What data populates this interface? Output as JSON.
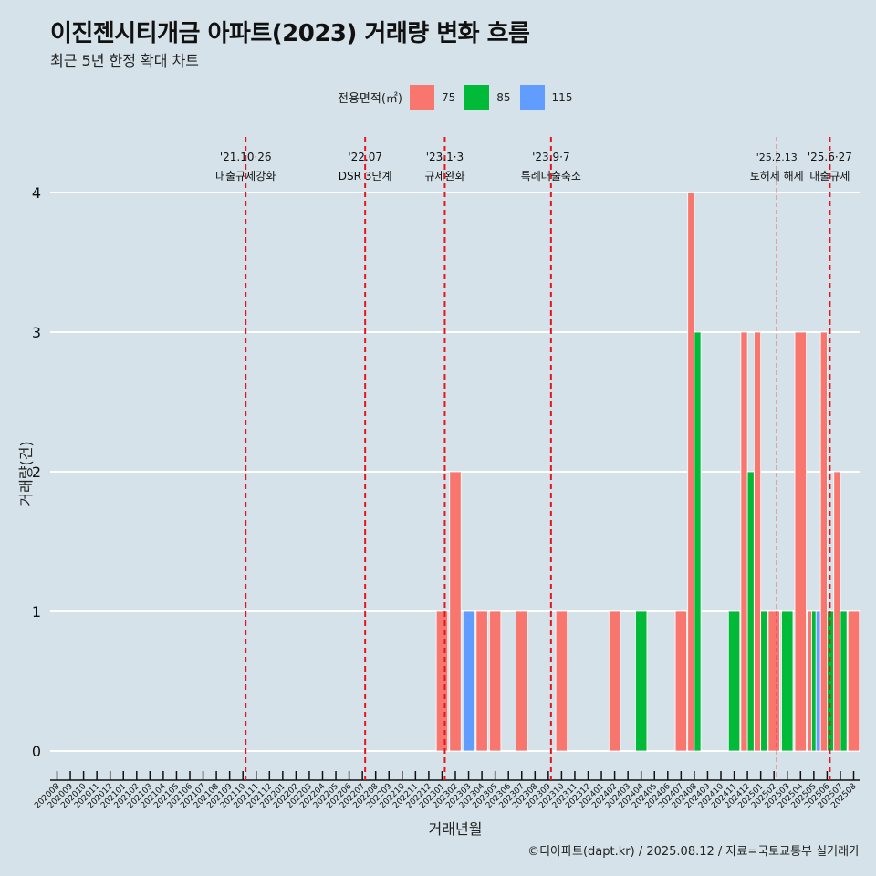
{
  "title": "이진젠시티개금 아파트(2023) 거래량 변화 흐름",
  "subtitle": "최근 5년 한정 확대 차트",
  "legend": {
    "title": "전용면적(㎡)",
    "items": [
      {
        "label": "75",
        "color": "#F8766D"
      },
      {
        "label": "85",
        "color": "#00BA38"
      },
      {
        "label": "115",
        "color": "#619CFF"
      }
    ]
  },
  "caption": "©디아파트(dapt.kr) / 2025.08.12 / 자료=국토교통부 실거래가",
  "chart_data": {
    "type": "bar",
    "xlabel": "거래년월",
    "ylabel": "거래량(건)",
    "ylim": [
      0,
      4
    ],
    "yticks": [
      0,
      1,
      2,
      3,
      4
    ],
    "grid": true,
    "legend_position": "top",
    "categories": [
      "202008",
      "202009",
      "202010",
      "202011",
      "202012",
      "202101",
      "202102",
      "202103",
      "202104",
      "202105",
      "202106",
      "202107",
      "202108",
      "202109",
      "202110",
      "202111",
      "202112",
      "202201",
      "202202",
      "202203",
      "202204",
      "202205",
      "202206",
      "202207",
      "202208",
      "202209",
      "202210",
      "202211",
      "202212",
      "202301",
      "202302",
      "202303",
      "202304",
      "202305",
      "202306",
      "202307",
      "202308",
      "202309",
      "202310",
      "202311",
      "202312",
      "202401",
      "202402",
      "202403",
      "202404",
      "202405",
      "202406",
      "202407",
      "202408",
      "202409",
      "202410",
      "202411",
      "202412",
      "202501",
      "202502",
      "202503",
      "202504",
      "202505",
      "202506",
      "202507",
      "202508"
    ],
    "series": [
      {
        "name": "75",
        "color": "#F8766D",
        "points": [
          {
            "x": "202301",
            "y": 1
          },
          {
            "x": "202302",
            "y": 2
          },
          {
            "x": "202304",
            "y": 1
          },
          {
            "x": "202305",
            "y": 1
          },
          {
            "x": "202307",
            "y": 1
          },
          {
            "x": "202310",
            "y": 1
          },
          {
            "x": "202402",
            "y": 1
          },
          {
            "x": "202407",
            "y": 1
          },
          {
            "x": "202408",
            "y": 4
          },
          {
            "x": "202412",
            "y": 3
          },
          {
            "x": "202501",
            "y": 3
          },
          {
            "x": "202502",
            "y": 1
          },
          {
            "x": "202504",
            "y": 3
          },
          {
            "x": "202505",
            "y": 1
          },
          {
            "x": "202506",
            "y": 3
          },
          {
            "x": "202507",
            "y": 2
          },
          {
            "x": "202508",
            "y": 1
          }
        ]
      },
      {
        "name": "85",
        "color": "#00BA38",
        "points": [
          {
            "x": "202404",
            "y": 1
          },
          {
            "x": "202408",
            "y": 3
          },
          {
            "x": "202411",
            "y": 1
          },
          {
            "x": "202412",
            "y": 2
          },
          {
            "x": "202501",
            "y": 1
          },
          {
            "x": "202503",
            "y": 1
          },
          {
            "x": "202505",
            "y": 1
          },
          {
            "x": "202506",
            "y": 1
          },
          {
            "x": "202507",
            "y": 1
          }
        ]
      },
      {
        "name": "115",
        "color": "#619CFF",
        "points": [
          {
            "x": "202303",
            "y": 1
          },
          {
            "x": "202505",
            "y": 1
          }
        ]
      }
    ],
    "annotations": [
      {
        "x": "202110",
        "date": "'21.10·26",
        "label": "대출규제강화"
      },
      {
        "x": "202207",
        "date": "'22.07",
        "label": "DSR 3단계"
      },
      {
        "x": "202301",
        "date": "'23.1·3",
        "label": "규제완화"
      },
      {
        "x": "202309",
        "date": "'23.9·7",
        "label": "특례대출축소"
      },
      {
        "x": "202502",
        "date": "'25.2.13",
        "label": "토허제 해제",
        "style": "thin"
      },
      {
        "x": "202506",
        "date": "'25.6·27",
        "label": "대출규제"
      }
    ]
  }
}
